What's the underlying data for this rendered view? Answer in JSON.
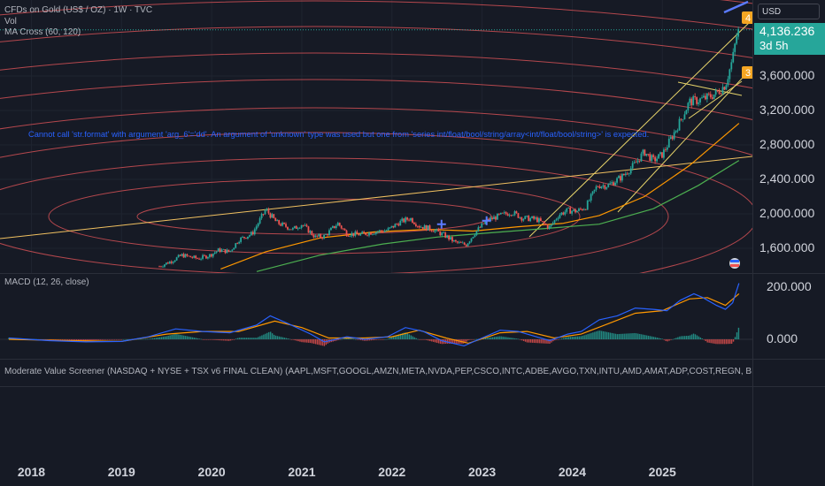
{
  "header": {
    "symbol_title": "CFDs on Gold (US$ / OZ) · 1W · TVC",
    "vol_label": "Vol",
    "indicator_label": "MA Cross (60, 120)",
    "currency": "USD"
  },
  "price_panel": {
    "current_price": "4,136.236",
    "countdown": "3d 5h",
    "error_message": "Cannot call 'str.format' with argument 'arg_6'='dd'. An argument of 'unknown' type was used but one from 'series int/float/bool/string/array<int/float/bool/string>' is expected.",
    "marker_labels": [
      "4",
      "3"
    ]
  },
  "macd_panel": {
    "label": "MACD (12, 26, close)"
  },
  "screener_panel": {
    "text": "Moderate Value Screener (NASDAQ + NYSE + TSX v6 FINAL CLEAN) (AAPL,MSFT,GOOGL,AMZN,META,NVDA,PEP,CSCO,INTC,ADBE,AVGO,TXN,INTU,AMD,AMAT,ADP,COST,REGN, BRK.B,JNJ,JPM,PG,KO,MRK,UNH,LOW"
  },
  "colors": {
    "background": "#161a25",
    "up": "#26a69a",
    "down": "#ef5350",
    "macd": "#2962ff",
    "signal": "#ff9800",
    "ma_fast": "#ff9800",
    "ma_slow": "#4caf50",
    "circles": "#d05055",
    "trend": "#e6d36a"
  },
  "chart_data": [
    {
      "type": "candlestick",
      "title": "CFDs on Gold (US$ / OZ) · 1W · TVC",
      "x_ticks": [
        "2018",
        "2019",
        "2020",
        "2021",
        "2022",
        "2023",
        "2024",
        "2025"
      ],
      "y_ticks": [
        "1,600.000",
        "2,000.000",
        "2,400.000",
        "2,800.000",
        "3,200.000",
        "3,600.000"
      ],
      "y_tick_values": [
        1600,
        2000,
        2400,
        2800,
        3200,
        3600
      ],
      "ylim": [
        1320,
        4450
      ],
      "xlim": [
        2017.75,
        2025.95
      ],
      "series_points": [
        [
          2019.42,
          1390
        ],
        [
          2019.55,
          1450
        ],
        [
          2019.67,
          1520
        ],
        [
          2019.85,
          1480
        ],
        [
          2019.98,
          1520
        ],
        [
          2020.08,
          1580
        ],
        [
          2020.2,
          1560
        ],
        [
          2020.3,
          1700
        ],
        [
          2020.45,
          1770
        ],
        [
          2020.6,
          2050
        ],
        [
          2020.72,
          1900
        ],
        [
          2020.9,
          1820
        ],
        [
          2021.0,
          1880
        ],
        [
          2021.15,
          1730
        ],
        [
          2021.25,
          1740
        ],
        [
          2021.4,
          1890
        ],
        [
          2021.5,
          1770
        ],
        [
          2021.65,
          1760
        ],
        [
          2021.8,
          1790
        ],
        [
          2021.95,
          1810
        ],
        [
          2022.08,
          1900
        ],
        [
          2022.2,
          1950
        ],
        [
          2022.3,
          1860
        ],
        [
          2022.45,
          1820
        ],
        [
          2022.6,
          1740
        ],
        [
          2022.7,
          1670
        ],
        [
          2022.82,
          1640
        ],
        [
          2022.92,
          1780
        ],
        [
          2023.05,
          1920
        ],
        [
          2023.2,
          1980
        ],
        [
          2023.33,
          2020
        ],
        [
          2023.45,
          1950
        ],
        [
          2023.6,
          1940
        ],
        [
          2023.75,
          1840
        ],
        [
          2023.85,
          1990
        ],
        [
          2023.95,
          2040
        ],
        [
          2024.05,
          2030
        ],
        [
          2024.15,
          2080
        ],
        [
          2024.28,
          2330
        ],
        [
          2024.4,
          2330
        ],
        [
          2024.55,
          2430
        ],
        [
          2024.68,
          2560
        ],
        [
          2024.8,
          2720
        ],
        [
          2024.9,
          2620
        ],
        [
          2025.0,
          2690
        ],
        [
          2025.1,
          2880
        ],
        [
          2025.2,
          3080
        ],
        [
          2025.3,
          3300
        ],
        [
          2025.4,
          3320
        ],
        [
          2025.5,
          3350
        ],
        [
          2025.6,
          3400
        ],
        [
          2025.7,
          3500
        ],
        [
          2025.78,
          3800
        ],
        [
          2025.82,
          4050
        ],
        [
          2025.85,
          4136
        ]
      ],
      "ma_fast_points": [
        [
          2020.1,
          1360
        ],
        [
          2020.6,
          1560
        ],
        [
          2021.2,
          1720
        ],
        [
          2021.8,
          1790
        ],
        [
          2022.4,
          1820
        ],
        [
          2022.9,
          1800
        ],
        [
          2023.4,
          1850
        ],
        [
          2023.9,
          1890
        ],
        [
          2024.3,
          1980
        ],
        [
          2024.8,
          2200
        ],
        [
          2025.3,
          2560
        ],
        [
          2025.85,
          3050
        ]
      ],
      "ma_slow_points": [
        [
          2020.5,
          1330
        ],
        [
          2021.2,
          1520
        ],
        [
          2021.9,
          1650
        ],
        [
          2022.5,
          1730
        ],
        [
          2023.1,
          1780
        ],
        [
          2023.7,
          1830
        ],
        [
          2024.3,
          1880
        ],
        [
          2024.9,
          2060
        ],
        [
          2025.4,
          2330
        ],
        [
          2025.85,
          2620
        ]
      ],
      "current_price": 4136.236
    },
    {
      "type": "line",
      "title": "MACD (12, 26, close)",
      "y_ticks": [
        "0.000",
        "200.000"
      ],
      "y_tick_values": [
        0,
        200
      ],
      "ylim": [
        -20,
        230
      ],
      "series": [
        {
          "name": "MACD",
          "points": [
            [
              2017.75,
              5
            ],
            [
              2018.2,
              -5
            ],
            [
              2018.6,
              -10
            ],
            [
              2019.0,
              -8
            ],
            [
              2019.3,
              10
            ],
            [
              2019.6,
              40
            ],
            [
              2019.9,
              30
            ],
            [
              2020.2,
              25
            ],
            [
              2020.5,
              55
            ],
            [
              2020.65,
              90
            ],
            [
              2020.85,
              60
            ],
            [
              2021.1,
              20
            ],
            [
              2021.25,
              -10
            ],
            [
              2021.5,
              10
            ],
            [
              2021.7,
              0
            ],
            [
              2021.95,
              10
            ],
            [
              2022.15,
              45
            ],
            [
              2022.35,
              30
            ],
            [
              2022.55,
              -5
            ],
            [
              2022.8,
              -25
            ],
            [
              2023.0,
              5
            ],
            [
              2023.2,
              35
            ],
            [
              2023.4,
              30
            ],
            [
              2023.6,
              10
            ],
            [
              2023.75,
              -5
            ],
            [
              2023.95,
              20
            ],
            [
              2024.1,
              30
            ],
            [
              2024.3,
              75
            ],
            [
              2024.5,
              90
            ],
            [
              2024.7,
              120
            ],
            [
              2024.9,
              115
            ],
            [
              2025.05,
              110
            ],
            [
              2025.2,
              150
            ],
            [
              2025.35,
              175
            ],
            [
              2025.45,
              160
            ],
            [
              2025.6,
              130
            ],
            [
              2025.7,
              115
            ],
            [
              2025.78,
              140
            ],
            [
              2025.85,
              215
            ]
          ]
        },
        {
          "name": "Signal",
          "points": [
            [
              2017.75,
              0
            ],
            [
              2018.4,
              -5
            ],
            [
              2019.0,
              -8
            ],
            [
              2019.5,
              20
            ],
            [
              2019.9,
              30
            ],
            [
              2020.3,
              30
            ],
            [
              2020.7,
              70
            ],
            [
              2021.0,
              45
            ],
            [
              2021.3,
              5
            ],
            [
              2021.7,
              5
            ],
            [
              2022.0,
              10
            ],
            [
              2022.3,
              35
            ],
            [
              2022.6,
              5
            ],
            [
              2022.85,
              -15
            ],
            [
              2023.2,
              25
            ],
            [
              2023.5,
              30
            ],
            [
              2023.8,
              5
            ],
            [
              2024.1,
              20
            ],
            [
              2024.4,
              60
            ],
            [
              2024.7,
              100
            ],
            [
              2025.0,
              110
            ],
            [
              2025.3,
              155
            ],
            [
              2025.5,
              160
            ],
            [
              2025.7,
              130
            ],
            [
              2025.85,
              175
            ]
          ]
        }
      ]
    }
  ]
}
